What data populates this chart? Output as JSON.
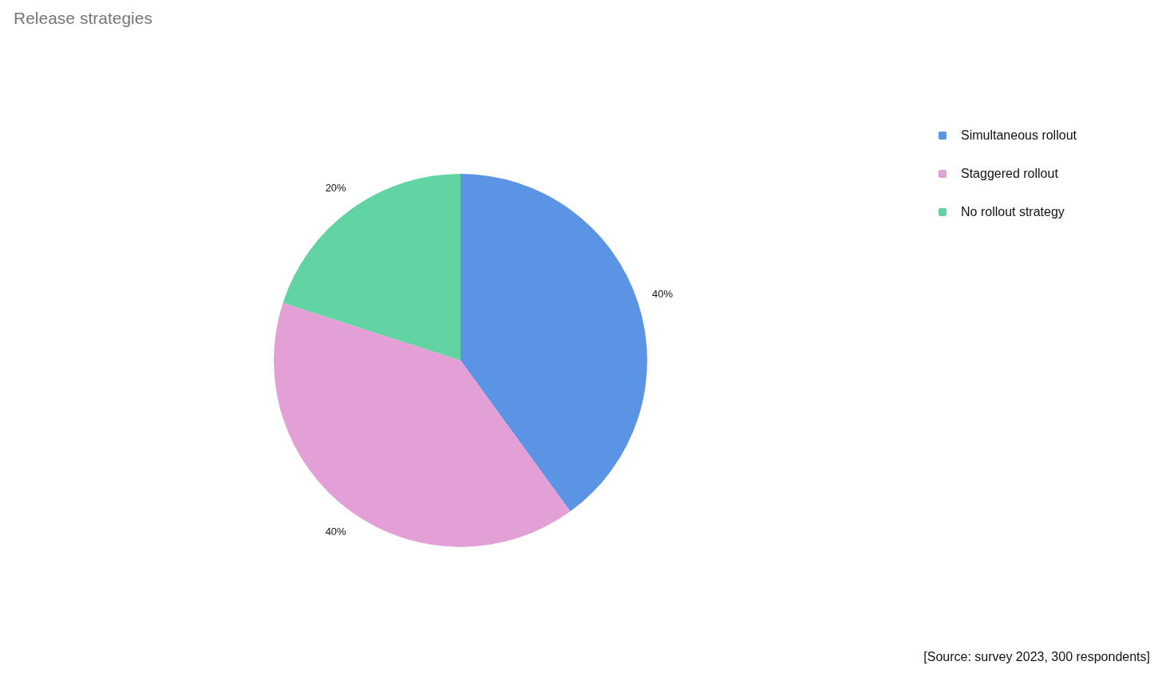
{
  "chart_data": {
    "type": "pie",
    "title": "Release strategies",
    "categories": [
      "Simultaneous rollout",
      "Staggered rollout",
      "No rollout strategy"
    ],
    "values": [
      40,
      40,
      20
    ],
    "colors": [
      "#5b93e5",
      "#e2a0d6",
      "#62d4a4"
    ],
    "value_labels": [
      "40%",
      "40%",
      "20%"
    ],
    "legend": "top right",
    "annotations": [
      "[Source: survey 2023, 300 respondents]"
    ]
  }
}
